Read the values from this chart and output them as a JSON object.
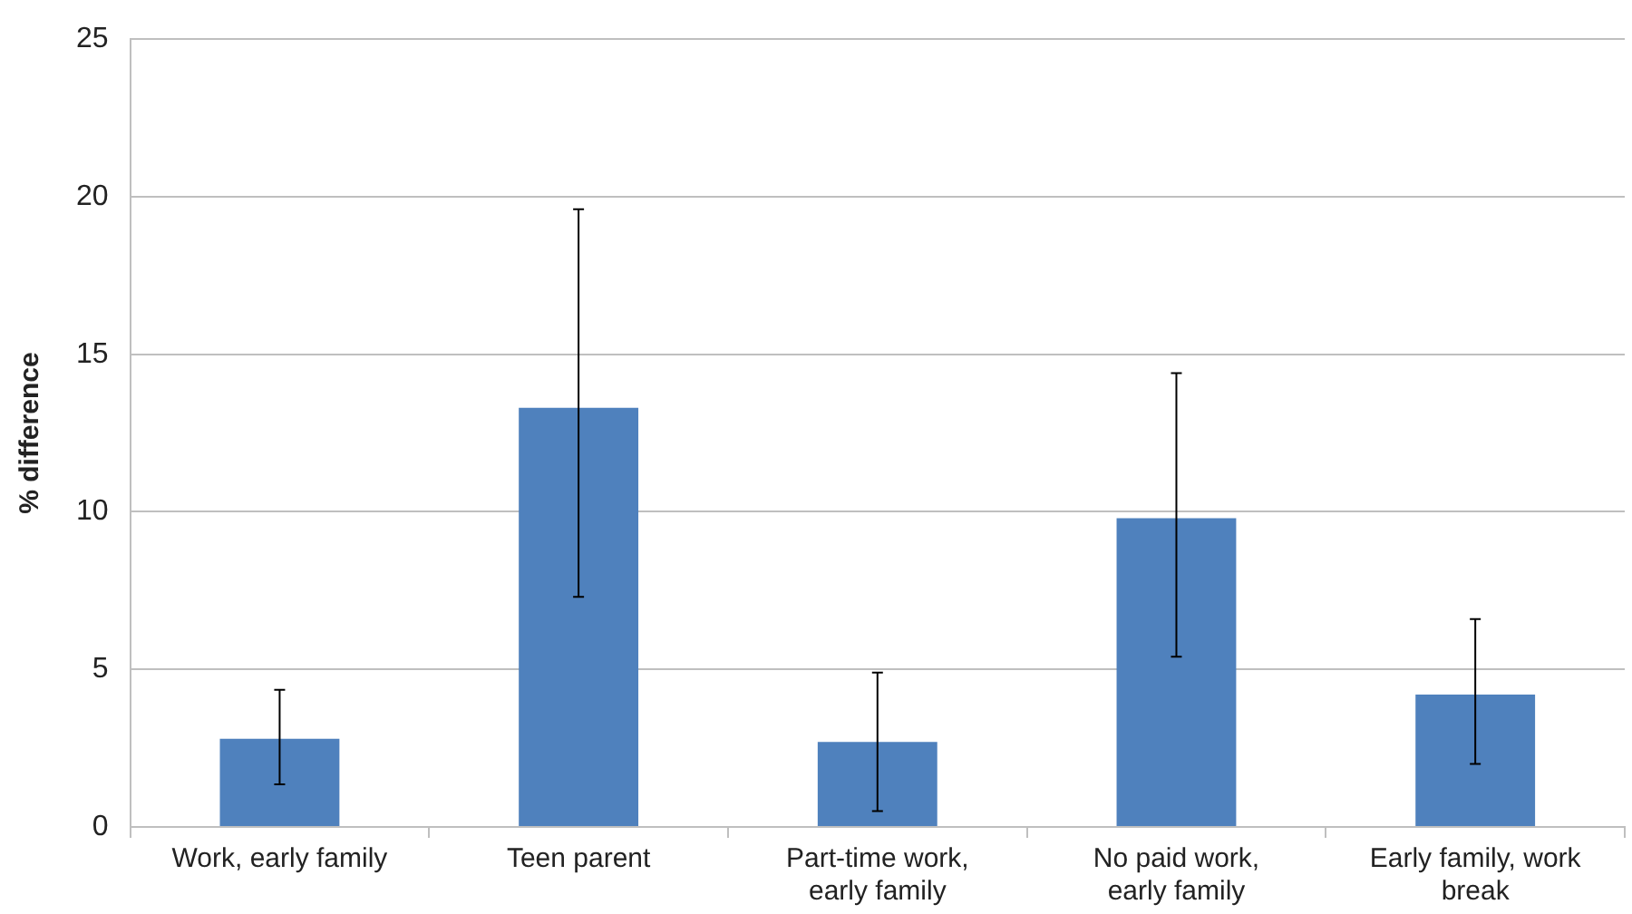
{
  "chart_data": {
    "type": "bar",
    "ylabel": "% difference",
    "categories": [
      "Work, early family",
      "Teen parent",
      "Part-time work, early family",
      "No paid work, early family",
      "Early family, work break"
    ],
    "values": [
      2.8,
      13.3,
      2.7,
      9.8,
      4.2
    ],
    "errors": [
      [
        1.35,
        4.35
      ],
      [
        7.3,
        19.6
      ],
      [
        0.5,
        4.9
      ],
      [
        5.4,
        14.4
      ],
      [
        2.0,
        6.6
      ]
    ],
    "color": "#4f81bd",
    "ylim": [
      0,
      25
    ],
    "yticks": [
      0,
      5,
      10,
      15,
      20,
      25
    ],
    "grid": "y",
    "legend": false
  }
}
